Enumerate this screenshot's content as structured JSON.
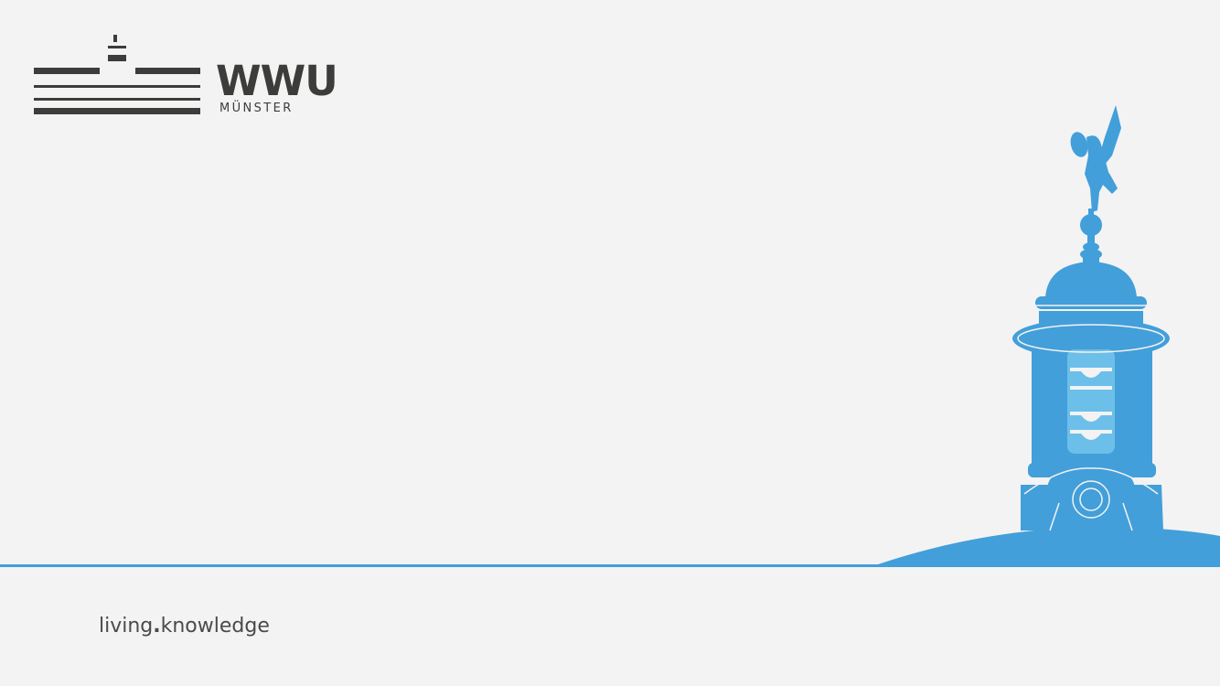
{
  "logo": {
    "wordmark": "WWU",
    "city": "MÜNSTER",
    "mark_icon": "university-emblem-icon"
  },
  "illustration": {
    "icon": "muenster-tower-icon",
    "color": "#429fda"
  },
  "slogan": {
    "part1": "living",
    "separator": ".",
    "part2": "knowledge"
  },
  "colors": {
    "background": "#f3f3f3",
    "accent": "#429fda",
    "text": "#3c3c3b"
  }
}
